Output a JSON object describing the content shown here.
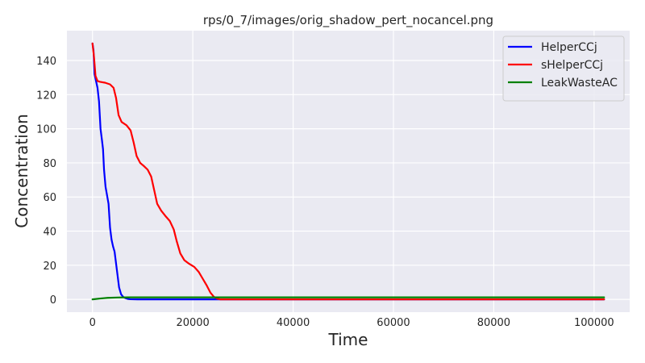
{
  "chart_data": {
    "type": "line",
    "title": "rps/0_7/images/orig_shadow_pert_nocancel.png",
    "xlabel": "Time",
    "ylabel": "Concentration",
    "xlim": [
      -5100,
      107100
    ],
    "ylim": [
      -7.5,
      157.5
    ],
    "xticks": [
      0,
      20000,
      40000,
      60000,
      80000,
      100000
    ],
    "yticks": [
      0,
      20,
      40,
      60,
      80,
      100,
      120,
      140
    ],
    "grid": true,
    "legend_position": "top-right",
    "series": [
      {
        "name": "HelperCCj",
        "color": "#0000ff",
        "points": [
          [
            0,
            150
          ],
          [
            200,
            146
          ],
          [
            400,
            132
          ],
          [
            700,
            128
          ],
          [
            1000,
            124
          ],
          [
            1300,
            116
          ],
          [
            1600,
            100
          ],
          [
            1900,
            93
          ],
          [
            2100,
            88
          ],
          [
            2300,
            76
          ],
          [
            2600,
            66
          ],
          [
            2900,
            61
          ],
          [
            3200,
            56
          ],
          [
            3500,
            42
          ],
          [
            3800,
            35
          ],
          [
            4100,
            31
          ],
          [
            4400,
            28
          ],
          [
            4700,
            21
          ],
          [
            5000,
            14
          ],
          [
            5300,
            7
          ],
          [
            5700,
            3
          ],
          [
            6100,
            1.5
          ],
          [
            6500,
            0.8
          ],
          [
            7000,
            0.3
          ],
          [
            7500,
            0.1
          ],
          [
            9000,
            0
          ],
          [
            20000,
            0
          ],
          [
            40000,
            0
          ],
          [
            60000,
            0
          ],
          [
            80000,
            0
          ],
          [
            102000,
            0
          ]
        ]
      },
      {
        "name": "sHelperCCj",
        "color": "#ff0000",
        "points": [
          [
            0,
            150
          ],
          [
            300,
            142
          ],
          [
            600,
            131
          ],
          [
            1000,
            128
          ],
          [
            1500,
            127.5
          ],
          [
            2500,
            127
          ],
          [
            3500,
            126
          ],
          [
            4200,
            124
          ],
          [
            4700,
            118
          ],
          [
            5200,
            108
          ],
          [
            5800,
            104
          ],
          [
            6800,
            102
          ],
          [
            7600,
            99
          ],
          [
            8200,
            92
          ],
          [
            8800,
            84
          ],
          [
            9500,
            80
          ],
          [
            10300,
            78
          ],
          [
            11000,
            76
          ],
          [
            11700,
            72
          ],
          [
            12300,
            64
          ],
          [
            12900,
            56
          ],
          [
            13700,
            52
          ],
          [
            14500,
            49
          ],
          [
            15400,
            46
          ],
          [
            16200,
            41
          ],
          [
            16800,
            34
          ],
          [
            17500,
            27
          ],
          [
            18300,
            23
          ],
          [
            19200,
            21
          ],
          [
            20300,
            19
          ],
          [
            21200,
            16
          ],
          [
            22000,
            12
          ],
          [
            22800,
            8
          ],
          [
            23500,
            4
          ],
          [
            24200,
            1.5
          ],
          [
            24800,
            0.5
          ],
          [
            25500,
            0
          ],
          [
            40000,
            0
          ],
          [
            60000,
            0
          ],
          [
            80000,
            0
          ],
          [
            102000,
            0
          ]
        ]
      },
      {
        "name": "LeakWasteAC",
        "color": "#008000",
        "points": [
          [
            0,
            0
          ],
          [
            1500,
            0.5
          ],
          [
            3000,
            0.9
          ],
          [
            5000,
            1.1
          ],
          [
            7000,
            1.2
          ],
          [
            10000,
            1.2
          ],
          [
            25000,
            1.2
          ],
          [
            50000,
            1.2
          ],
          [
            75000,
            1.2
          ],
          [
            102000,
            1.2
          ]
        ]
      }
    ]
  }
}
